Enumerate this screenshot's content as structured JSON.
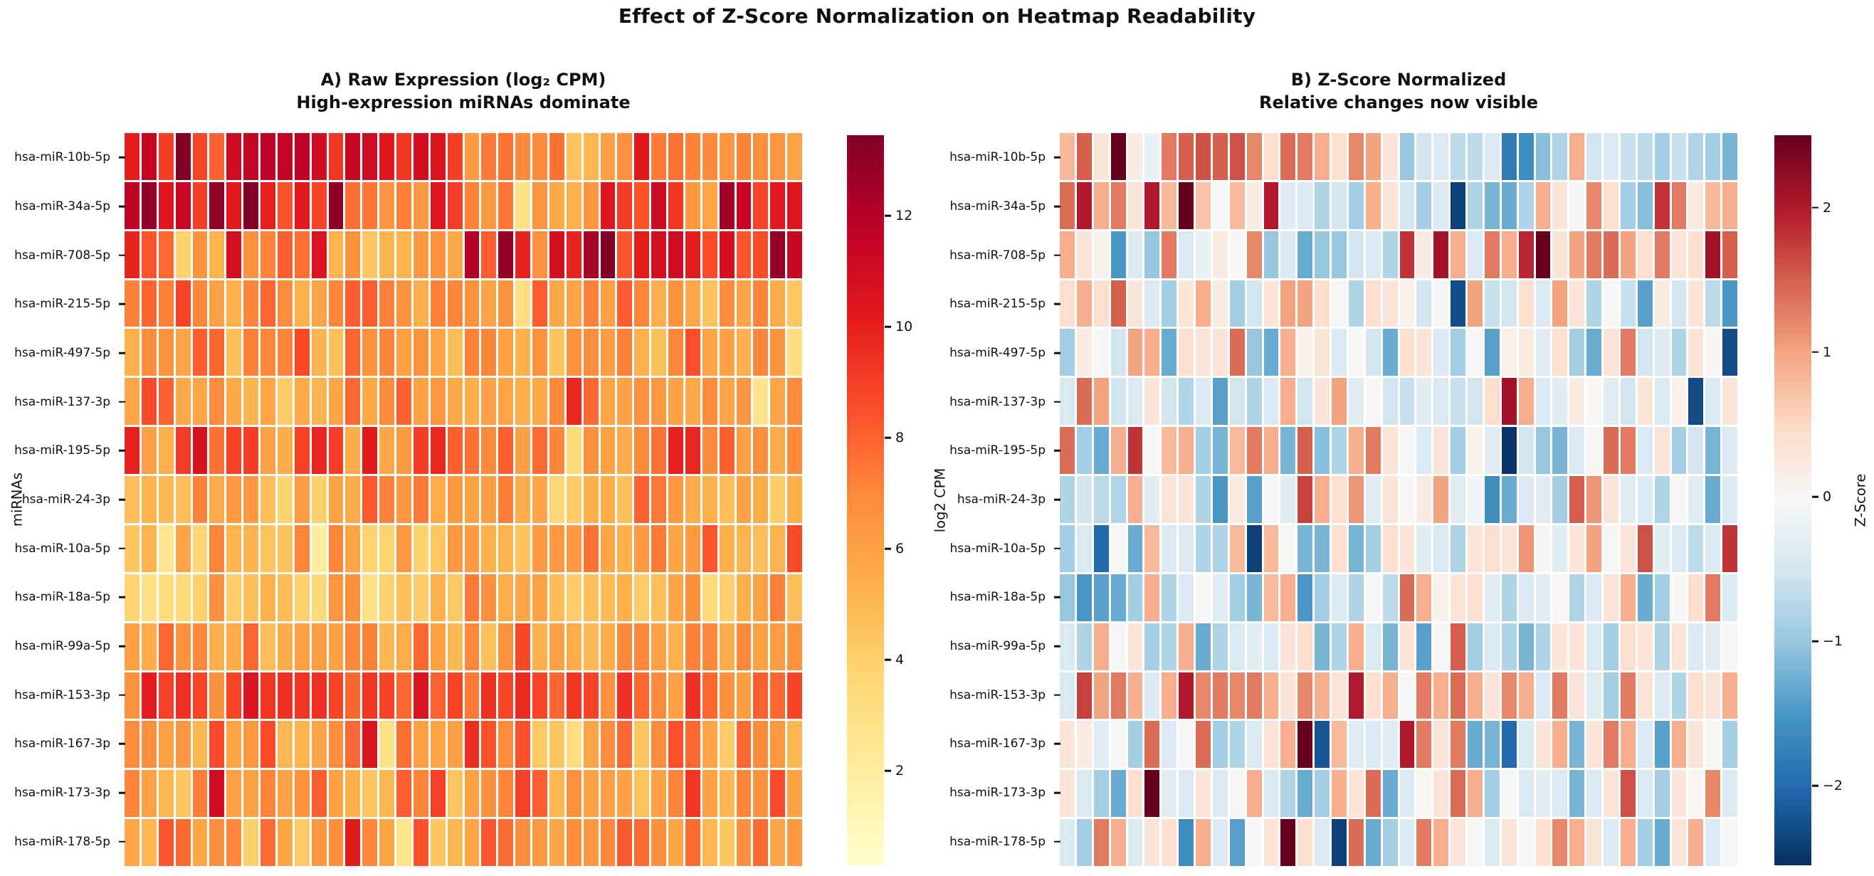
{
  "title": "Effect of Z-Score Normalization on Heatmap Readability",
  "ylabel": "miRNAs",
  "chart_data": {
    "type": "heatmap",
    "grid": {
      "n_rows": 15,
      "n_cols": 40,
      "cell_gridlines": "white"
    },
    "rows": [
      "hsa-miR-10b-5p",
      "hsa-miR-34a-5p",
      "hsa-miR-708-5p",
      "hsa-miR-215-5p",
      "hsa-miR-497-5p",
      "hsa-miR-137-3p",
      "hsa-miR-195-5p",
      "hsa-miR-24-3p",
      "hsa-miR-10a-5p",
      "hsa-miR-18a-5p",
      "hsa-miR-99a-5p",
      "hsa-miR-153-3p",
      "hsa-miR-167-3p",
      "hsa-miR-173-3p",
      "hsa-miR-178-5p"
    ],
    "panels": [
      {
        "id": "A",
        "title": "A) Raw Expression (log₂ CPM)",
        "subtitle": "High-expression miRNAs dominate",
        "colormap": "YlOrRd",
        "colormap_anchors": [
          "#ffffcc",
          "#ffeda0",
          "#fed976",
          "#feb24c",
          "#fd8d3c",
          "#fc4e2a",
          "#e31a1c",
          "#bd0026",
          "#800026"
        ],
        "vmin": 0.3,
        "vmax": 13.45,
        "colorbar_label": "log2 CPM",
        "colorbar_ticks": [
          {
            "value": 12,
            "label": "12"
          },
          {
            "value": 10,
            "label": "10"
          },
          {
            "value": 8,
            "label": "8"
          },
          {
            "value": 6,
            "label": "6"
          },
          {
            "value": 4,
            "label": "4"
          },
          {
            "value": 2,
            "label": "2"
          }
        ],
        "values_from": "raw = row_mean + z * row_std (per-row reconstruction of depicted log2 CPM)"
      },
      {
        "id": "B",
        "title": "B) Z-Score Normalized",
        "subtitle": "Relative changes now visible",
        "colormap": "RdBu_r",
        "colormap_anchors": [
          "#053061",
          "#2166ac",
          "#4393c3",
          "#92c5de",
          "#d1e5f0",
          "#f7f7f7",
          "#fddbc7",
          "#f4a582",
          "#d6604d",
          "#b2182b",
          "#67001f"
        ],
        "vmin": -2.55,
        "vmax": 2.5,
        "colorbar_label": "Z-Score",
        "colorbar_ticks": [
          {
            "value": 2,
            "label": "2"
          },
          {
            "value": 1,
            "label": "1"
          },
          {
            "value": 0,
            "label": "0"
          },
          {
            "value": -1,
            "label": "−1"
          },
          {
            "value": -2,
            "label": "−2"
          }
        ],
        "values_from": "zscore matrix below (row-wise z-scores of panel A)"
      }
    ],
    "row_means": [
      8.4,
      8.4,
      7.6,
      6.6,
      6.6,
      6.4,
      7.6,
      5.9,
      5.8,
      5.3,
      6.6,
      7.4,
      6.4,
      6.6,
      6.4
    ],
    "row_stds": [
      2.1,
      2.3,
      2.5,
      1.5,
      1.5,
      1.6,
      1.7,
      1.4,
      1.6,
      1.5,
      1.4,
      1.6,
      1.6,
      1.7,
      1.5
    ],
    "zscore": [
      [
        0.8,
        1.5,
        0.3,
        2.6,
        0.2,
        -0.2,
        1.3,
        1.5,
        1.6,
        1.5,
        1.6,
        1.2,
        0.4,
        1.4,
        1.3,
        0.9,
        0.4,
        1.2,
        1.0,
        0.3,
        -1.0,
        -0.5,
        -0.4,
        -0.7,
        -0.7,
        -0.4,
        -1.8,
        -1.6,
        -1.1,
        -0.8,
        0.9,
        -0.5,
        -0.4,
        -0.6,
        -0.7,
        -0.9,
        -0.6,
        -0.8,
        -0.9,
        -1.2
      ],
      [
        1.4,
        2.0,
        0.9,
        1.3,
        0.3,
        2.0,
        0.8,
        2.6,
        0.7,
        0.0,
        0.8,
        0.2,
        2.0,
        -0.3,
        -0.4,
        -0.8,
        -0.5,
        -0.9,
        0.9,
        0.3,
        -0.5,
        -0.9,
        -0.4,
        -2.4,
        -0.8,
        -1.2,
        -1.3,
        -0.8,
        0.9,
        0.3,
        0.0,
        1.2,
        0.4,
        -0.9,
        -1.1,
        1.8,
        1.3,
        0.2,
        0.8,
        0.9
      ],
      [
        0.9,
        0.3,
        0.1,
        -1.5,
        -0.4,
        -1.0,
        1.3,
        -0.4,
        -0.2,
        0.2,
        0.0,
        1.2,
        -1.0,
        -0.4,
        -1.3,
        -1.0,
        -1.0,
        -0.5,
        -0.4,
        -0.8,
        1.8,
        0.2,
        2.1,
        0.9,
        -0.4,
        1.3,
        0.9,
        1.9,
        2.6,
        0.3,
        1.0,
        1.3,
        1.4,
        1.0,
        0.4,
        1.3,
        0.3,
        0.4,
        2.1,
        1.5
      ],
      [
        0.4,
        0.9,
        0.4,
        1.5,
        0.3,
        -0.4,
        -0.9,
        0.3,
        0.9,
        0.2,
        -0.9,
        -0.5,
        0.3,
        1.0,
        1.0,
        0.4,
        0.0,
        -0.8,
        0.4,
        0.3,
        0.1,
        -0.5,
        0.0,
        -2.3,
        1.0,
        -0.6,
        -0.5,
        0.4,
        -0.4,
        1.0,
        0.3,
        -0.8,
        0.0,
        -0.6,
        -1.4,
        0.2,
        -0.5,
        0.3,
        -0.7,
        -1.5
      ],
      [
        -0.9,
        0.2,
        0.0,
        -0.5,
        1.0,
        0.9,
        -1.3,
        0.4,
        0.3,
        0.3,
        1.4,
        -1.0,
        -1.3,
        0.9,
        0.1,
        0.3,
        -0.4,
        0.0,
        -0.5,
        -1.3,
        0.4,
        0.3,
        -0.4,
        -0.9,
        0.0,
        -1.4,
        0.1,
        0.2,
        -0.3,
        0.4,
        -0.9,
        -1.3,
        0.3,
        1.3,
        -0.5,
        -0.4,
        -0.8,
        0.3,
        0.0,
        -2.3
      ],
      [
        -0.4,
        1.4,
        1.0,
        -0.5,
        -0.4,
        0.3,
        -0.5,
        -0.8,
        -0.4,
        -1.4,
        -0.5,
        -0.8,
        -0.4,
        0.9,
        -0.5,
        0.3,
        1.0,
        -0.3,
        0.0,
        -0.5,
        -0.6,
        -0.3,
        -0.4,
        -0.6,
        -0.5,
        0.4,
        2.1,
        0.9,
        -0.4,
        -0.3,
        0.2,
        0.0,
        -0.3,
        -0.5,
        0.3,
        -0.4,
        0.1,
        -2.3,
        -0.4,
        0.3
      ],
      [
        1.4,
        -0.9,
        -1.3,
        0.9,
        1.8,
        0.0,
        0.8,
        0.9,
        -0.9,
        -1.2,
        0.8,
        1.3,
        0.9,
        -1.2,
        1.5,
        -1.1,
        -0.8,
        0.9,
        1.3,
        0.3,
        0.0,
        -0.4,
        0.3,
        -0.9,
        0.1,
        -0.3,
        -2.5,
        -0.5,
        -1.0,
        -1.2,
        -0.4,
        0.0,
        1.4,
        1.3,
        -0.4,
        0.3,
        -0.9,
        -0.5,
        -1.2,
        -0.4
      ],
      [
        -0.8,
        -0.5,
        -0.7,
        -0.8,
        0.9,
        -0.3,
        0.3,
        0.3,
        -0.8,
        -1.5,
        0.2,
        -1.4,
        0.0,
        -0.3,
        1.7,
        0.9,
        0.4,
        1.1,
        -0.3,
        0.3,
        0.0,
        0.2,
        1.0,
        -0.3,
        -0.1,
        -1.6,
        -1.3,
        -0.4,
        -0.3,
        -0.9,
        1.5,
        1.1,
        0.3,
        -0.3,
        -0.4,
        -0.8,
        0.0,
        -0.3,
        -1.3,
        -0.4
      ],
      [
        -0.9,
        -0.4,
        -2.0,
        0.0,
        -1.3,
        0.8,
        -0.4,
        -0.4,
        -0.8,
        -0.8,
        0.8,
        -2.4,
        0.8,
        0.0,
        -1.2,
        -1.2,
        0.4,
        -1.2,
        -0.9,
        0.4,
        0.3,
        -0.3,
        -0.4,
        -0.8,
        0.3,
        0.4,
        0.3,
        1.1,
        0.0,
        -0.3,
        0.3,
        1.0,
        0.0,
        0.3,
        1.6,
        -0.3,
        -0.4,
        -0.7,
        -0.4,
        1.8
      ],
      [
        -1.0,
        -1.5,
        -1.4,
        -1.3,
        -0.9,
        0.9,
        -0.8,
        -0.4,
        0.0,
        -0.3,
        -0.9,
        -1.2,
        0.8,
        0.9,
        -1.5,
        -0.9,
        -0.4,
        -0.8,
        0.0,
        -0.7,
        1.4,
        0.9,
        0.1,
        0.3,
        0.4,
        -0.3,
        -0.8,
        -0.4,
        -0.3,
        0.0,
        -0.8,
        -0.4,
        0.3,
        0.9,
        -1.3,
        -0.9,
        0.0,
        0.4,
        1.3,
        -0.4
      ],
      [
        -0.4,
        -0.8,
        0.9,
        0.0,
        0.3,
        -0.9,
        -0.8,
        0.9,
        -1.3,
        -0.8,
        -0.4,
        -0.3,
        -0.4,
        0.3,
        0.4,
        -1.2,
        -0.8,
        0.9,
        -0.4,
        -1.2,
        0.3,
        -1.4,
        0.0,
        1.5,
        -0.9,
        -0.4,
        -0.8,
        -1.2,
        -0.8,
        0.3,
        0.3,
        -0.4,
        -0.9,
        0.4,
        0.3,
        -0.8,
        0.3,
        -0.4,
        -0.3,
        0.0
      ],
      [
        -0.4,
        1.7,
        1.0,
        1.3,
        0.9,
        -0.4,
        0.9,
        2.0,
        1.2,
        1.3,
        1.2,
        1.3,
        0.9,
        0.3,
        1.2,
        0.9,
        0.3,
        2.0,
        0.4,
        0.9,
        0.0,
        1.3,
        0.9,
        1.4,
        0.9,
        0.3,
        1.2,
        0.9,
        -0.4,
        1.3,
        0.3,
        -0.3,
        -0.9,
        1.3,
        0.3,
        -0.4,
        -0.8,
        0.4,
        0.3,
        0.9
      ],
      [
        0.3,
        0.2,
        -0.3,
        0.0,
        -0.9,
        1.4,
        -0.4,
        0.0,
        1.4,
        -0.9,
        -0.8,
        -0.4,
        0.3,
        0.9,
        2.6,
        -2.2,
        0.8,
        -0.3,
        -0.4,
        -0.3,
        2.0,
        1.3,
        0.3,
        1.3,
        -1.3,
        -1.2,
        -2.0,
        -0.4,
        0.3,
        0.9,
        -1.2,
        0.3,
        1.3,
        0.9,
        -0.4,
        -1.4,
        0.9,
        0.3,
        0.0,
        -0.9
      ],
      [
        0.3,
        -0.4,
        -0.9,
        -1.3,
        0.4,
        2.6,
        -0.3,
        -0.4,
        0.3,
        -0.4,
        0.0,
        0.9,
        -0.4,
        -0.8,
        -1.3,
        -0.9,
        0.9,
        0.3,
        1.4,
        -1.3,
        -0.4,
        0.0,
        0.3,
        1.4,
        0.9,
        -0.9,
        0.0,
        -0.4,
        -0.3,
        -0.4,
        -1.2,
        -0.4,
        0.3,
        1.6,
        -0.4,
        -0.9,
        0.3,
        0.0,
        1.2,
        -0.4
      ],
      [
        -0.4,
        -0.9,
        1.3,
        0.9,
        -0.4,
        0.3,
        0.4,
        -1.6,
        0.9,
        -0.4,
        -1.4,
        0.0,
        0.3,
        2.5,
        0.4,
        -0.4,
        -2.4,
        1.4,
        -1.3,
        -0.9,
        -0.4,
        1.3,
        0.9,
        0.3,
        0.0,
        -0.4,
        0.3,
        0.0,
        0.4,
        1.2,
        0.9,
        0.3,
        -0.4,
        0.9,
        -0.9,
        -1.3,
        0.3,
        0.9,
        -0.4,
        0.0
      ]
    ]
  },
  "colors": {
    "text": "#111111",
    "background": "#ffffff",
    "gridline": "#ffffff"
  }
}
